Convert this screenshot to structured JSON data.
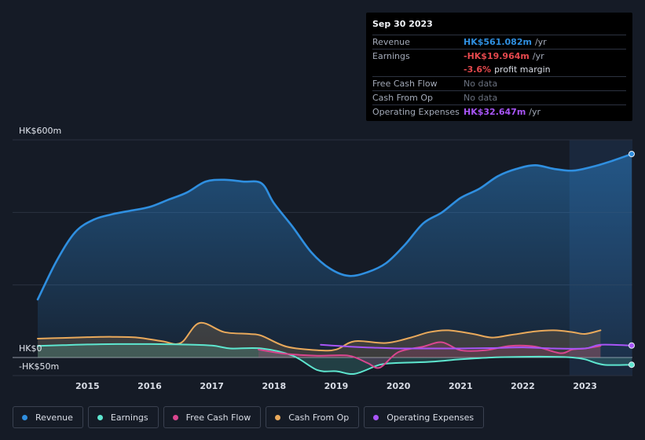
{
  "tooltip": {
    "date": "Sep 30 2023",
    "rows": {
      "revenue": {
        "label": "Revenue",
        "value": "HK$561.082m",
        "unit": "/yr",
        "color": "#2f8fe0"
      },
      "earnings": {
        "label": "Earnings",
        "value": "-HK$19.964m",
        "unit": "/yr",
        "color": "#e5484d"
      },
      "margin": {
        "value": "-3.6%",
        "text": "profit margin",
        "color": "#e5484d"
      },
      "fcf": {
        "label": "Free Cash Flow",
        "value": "No data"
      },
      "cfo": {
        "label": "Cash From Op",
        "value": "No data"
      },
      "opex": {
        "label": "Operating Expenses",
        "value": "HK$32.647m",
        "unit": "/yr",
        "color": "#a855f7"
      }
    }
  },
  "axis": {
    "y_top_label": "HK$600m",
    "y_zero_label": "HK$0",
    "y_neg_label": "-HK$50m"
  },
  "legend": [
    {
      "label": "Revenue",
      "color": "#2f8fe0"
    },
    {
      "label": "Earnings",
      "color": "#5ee6cf"
    },
    {
      "label": "Free Cash Flow",
      "color": "#d9468f"
    },
    {
      "label": "Cash From Op",
      "color": "#e9a95b"
    },
    {
      "label": "Operating Expenses",
      "color": "#a855f7"
    }
  ],
  "chart_data": {
    "type": "area",
    "currency": "HK$",
    "unit": "m",
    "ylim": [
      -50,
      600
    ],
    "yticks": [
      -50,
      0,
      200,
      400,
      600
    ],
    "xlim": [
      2014.2,
      2023.75
    ],
    "xticks": [
      2015,
      2016,
      2017,
      2018,
      2019,
      2020,
      2021,
      2022,
      2023
    ],
    "forecast_region_start": 2022.75,
    "series": [
      {
        "name": "Revenue",
        "color": "#2f8fe0",
        "x": [
          2014.2,
          2014.5,
          2014.8,
          2015.1,
          2015.4,
          2015.7,
          2016.0,
          2016.3,
          2016.6,
          2016.9,
          2017.2,
          2017.5,
          2017.8,
          2018.0,
          2018.3,
          2018.6,
          2018.9,
          2019.2,
          2019.5,
          2019.8,
          2020.1,
          2020.4,
          2020.7,
          2021.0,
          2021.3,
          2021.6,
          2021.9,
          2022.2,
          2022.5,
          2022.8,
          2023.1,
          2023.4,
          2023.75
        ],
        "values": [
          160,
          265,
          345,
          380,
          395,
          405,
          415,
          435,
          455,
          485,
          490,
          485,
          480,
          425,
          360,
          290,
          245,
          225,
          235,
          260,
          310,
          370,
          400,
          440,
          465,
          500,
          520,
          530,
          520,
          515,
          525,
          540,
          561
        ]
      },
      {
        "name": "Earnings",
        "color": "#5ee6cf",
        "x": [
          2014.2,
          2014.6,
          2015.0,
          2015.5,
          2016.0,
          2016.5,
          2017.0,
          2017.3,
          2017.8,
          2018.3,
          2018.7,
          2019.0,
          2019.3,
          2019.7,
          2020.0,
          2020.5,
          2021.0,
          2021.5,
          2022.0,
          2022.5,
          2022.8,
          2023.0,
          2023.3,
          2023.75
        ],
        "values": [
          32,
          34,
          36,
          37,
          37,
          36,
          33,
          25,
          25,
          5,
          -35,
          -38,
          -45,
          -20,
          -15,
          -12,
          -5,
          0,
          2,
          2,
          0,
          -5,
          -20,
          -20
        ]
      },
      {
        "name": "Free Cash Flow",
        "color": "#d9468f",
        "x": [
          2017.75,
          2018.2,
          2018.7,
          2019.2,
          2019.5,
          2019.7,
          2020.0,
          2020.4,
          2020.7,
          2021.0,
          2021.4,
          2021.8,
          2022.2,
          2022.6,
          2022.8,
          2023.0,
          2023.25
        ],
        "values": [
          22,
          10,
          5,
          5,
          -15,
          -28,
          15,
          30,
          42,
          20,
          20,
          32,
          30,
          12,
          22,
          25,
          32
        ]
      },
      {
        "name": "Cash From Op",
        "color": "#e9a95b",
        "x": [
          2014.2,
          2014.6,
          2015.0,
          2015.4,
          2015.8,
          2016.2,
          2016.5,
          2016.8,
          2017.2,
          2017.6,
          2017.8,
          2018.2,
          2018.7,
          2019.0,
          2019.3,
          2019.8,
          2020.2,
          2020.5,
          2020.8,
          2021.2,
          2021.5,
          2021.8,
          2022.2,
          2022.5,
          2022.8,
          2023.0,
          2023.25
        ],
        "values": [
          52,
          54,
          56,
          57,
          55,
          45,
          40,
          95,
          70,
          65,
          60,
          30,
          20,
          22,
          45,
          40,
          55,
          70,
          75,
          65,
          55,
          62,
          72,
          75,
          70,
          65,
          75
        ]
      },
      {
        "name": "Operating Expenses",
        "color": "#a855f7",
        "x": [
          2018.75,
          2019.2,
          2019.6,
          2020.0,
          2020.5,
          2021.0,
          2021.5,
          2022.0,
          2022.5,
          2023.0,
          2023.25,
          2023.75
        ],
        "values": [
          35,
          30,
          27,
          25,
          25,
          25,
          26,
          28,
          25,
          25,
          35,
          33
        ]
      }
    ]
  }
}
